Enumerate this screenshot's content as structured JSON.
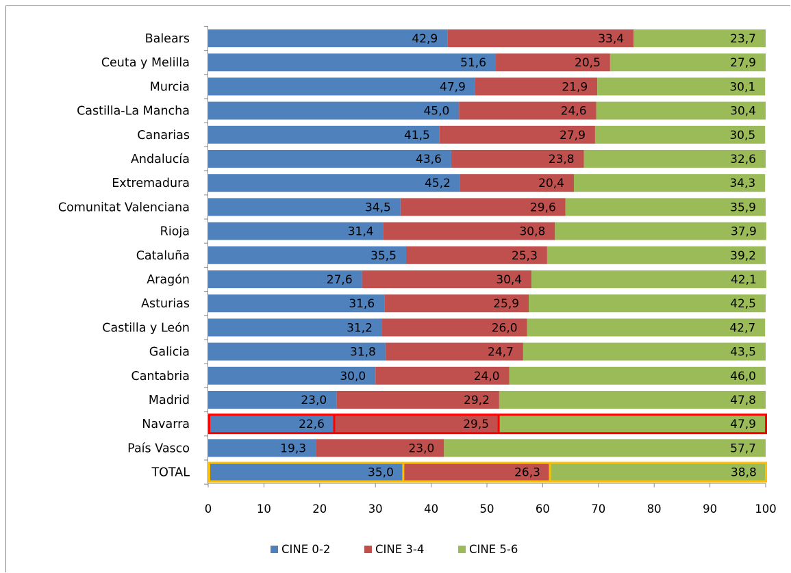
{
  "chart_data": {
    "type": "bar",
    "orientation": "horizontal",
    "stacked": true,
    "categories": [
      "Balears",
      "Ceuta y Melilla",
      "Murcia",
      "Castilla-La Mancha",
      "Canarias",
      "Andalucía",
      "Extremadura",
      "Comunitat Valenciana",
      "Rioja",
      "Cataluña",
      "Aragón",
      "Asturias",
      "Castilla y León",
      "Galicia",
      "Cantabria",
      "Madrid",
      "Navarra",
      "País Vasco",
      "TOTAL"
    ],
    "series": [
      {
        "name": "CINE 0-2",
        "color": "#4f81bd",
        "values": [
          42.9,
          51.6,
          47.9,
          45.0,
          41.5,
          43.6,
          45.2,
          34.5,
          31.4,
          35.5,
          27.6,
          31.6,
          31.2,
          31.8,
          30.0,
          23.0,
          22.6,
          19.3,
          35.0
        ]
      },
      {
        "name": "CINE 3-4",
        "color": "#c0504d",
        "values": [
          33.4,
          20.5,
          21.9,
          24.6,
          27.9,
          23.8,
          20.4,
          29.6,
          30.8,
          25.3,
          30.4,
          25.9,
          26.0,
          24.7,
          24.0,
          29.2,
          29.5,
          23.0,
          26.3
        ]
      },
      {
        "name": "CINE 5-6",
        "color": "#9bbb59",
        "values": [
          23.7,
          27.9,
          30.1,
          30.4,
          30.5,
          32.6,
          34.3,
          35.9,
          37.9,
          39.2,
          42.1,
          42.5,
          42.7,
          43.5,
          46.0,
          47.8,
          47.9,
          57.7,
          38.8
        ]
      }
    ],
    "data_labels": [
      [
        "42,9",
        "51,6",
        "47,9",
        "45,0",
        "41,5",
        "43,6",
        "45,2",
        "34,5",
        "31,4",
        "35,5",
        "27,6",
        "31,6",
        "31,2",
        "31,8",
        "30,0",
        "23,0",
        "22,6",
        "19,3",
        "35,0"
      ],
      [
        "33,4",
        "20,5",
        "21,9",
        "24,6",
        "27,9",
        "23,8",
        "20,4",
        "29,6",
        "30,8",
        "25,3",
        "30,4",
        "25,9",
        "26,0",
        "24,7",
        "24,0",
        "29,2",
        "29,5",
        "23,0",
        "26,3"
      ],
      [
        "23,7",
        "27,9",
        "30,1",
        "30,4",
        "30,5",
        "32,6",
        "34,3",
        "35,9",
        "37,9",
        "39,2",
        "42,1",
        "42,5",
        "42,7",
        "43,5",
        "46,0",
        "47,8",
        "47,9",
        "57,7",
        "38,8"
      ]
    ],
    "xlim": [
      0,
      100
    ],
    "xticks": [
      "0",
      "10",
      "20",
      "30",
      "40",
      "50",
      "60",
      "70",
      "80",
      "90",
      "100"
    ],
    "grid": false,
    "legend_position": "bottom",
    "highlights": [
      {
        "category": "Navarra",
        "color": "#ff0000"
      },
      {
        "category": "TOTAL",
        "color": "#ffc000"
      }
    ]
  }
}
